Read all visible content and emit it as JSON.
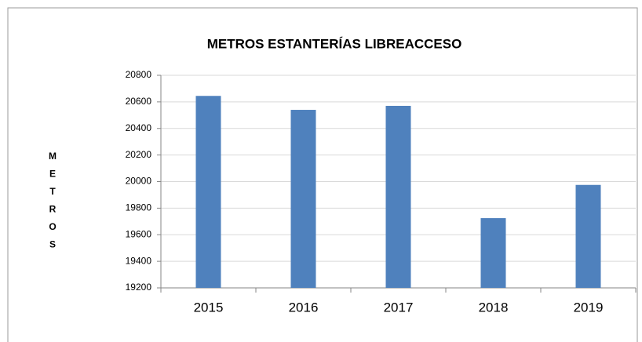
{
  "chart_data": {
    "type": "bar",
    "title": "METROS ESTANTERÍAS LIBREACCESO",
    "y_label": "METROS",
    "categories": [
      "2015",
      "2016",
      "2017",
      "2018",
      "2019"
    ],
    "values": [
      20645,
      20540,
      20570,
      19725,
      19975
    ],
    "color": "#4f81bd",
    "ylim": [
      19200,
      20800
    ],
    "yticks": [
      19200,
      19400,
      19600,
      19800,
      20000,
      20200,
      20400,
      20600,
      20800
    ],
    "grid": true
  }
}
